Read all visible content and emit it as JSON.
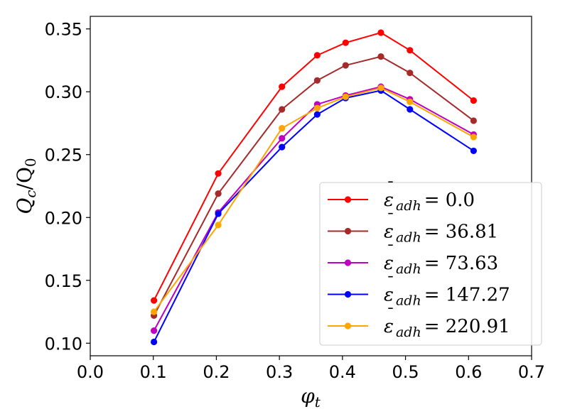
{
  "chart_data": {
    "type": "line",
    "title": "",
    "xlabel": "φ_t",
    "ylabel": "Q_c/Q_0",
    "xlim": [
      0.0,
      0.7
    ],
    "ylim": [
      0.09,
      0.36
    ],
    "xticks": [
      0.0,
      0.1,
      0.2,
      0.3,
      0.4,
      0.5,
      0.6,
      0.7
    ],
    "xtick_labels": [
      "0.0",
      "0.1",
      "0.2",
      "0.3",
      "0.4",
      "0.5",
      "0.6",
      "0.7"
    ],
    "yticks": [
      0.1,
      0.15,
      0.2,
      0.25,
      0.3,
      0.35
    ],
    "ytick_labels": [
      "0.10",
      "0.15",
      "0.20",
      "0.25",
      "0.30",
      "0.35"
    ],
    "grid": false,
    "legend_position": "lower-right",
    "x": [
      0.101,
      0.203,
      0.304,
      0.36,
      0.405,
      0.461,
      0.507,
      0.608
    ],
    "series": [
      {
        "name": "ε̄_adh = 0.0",
        "legend_value": "0.0",
        "color": "#ff0000",
        "values": [
          0.134,
          0.235,
          0.304,
          0.329,
          0.339,
          0.347,
          0.333,
          0.293
        ]
      },
      {
        "name": "ε̄_adh = 36.81",
        "legend_value": "36.81",
        "color": "#a52a2a",
        "values": [
          0.122,
          0.219,
          0.286,
          0.309,
          0.321,
          0.328,
          0.315,
          0.277
        ]
      },
      {
        "name": "ε̄_adh = 73.63",
        "legend_value": "73.63",
        "color": "#c000c0",
        "values": [
          0.11,
          0.204,
          0.263,
          0.29,
          0.297,
          0.304,
          0.294,
          0.266
        ]
      },
      {
        "name": "ε̄_adh = 147.27",
        "legend_value": "147.27",
        "color": "#0000ff",
        "values": [
          0.101,
          0.203,
          0.256,
          0.282,
          0.295,
          0.301,
          0.286,
          0.253
        ]
      },
      {
        "name": "ε̄_adh = 220.91",
        "legend_value": "220.91",
        "color": "#ffa500",
        "values": [
          0.125,
          0.194,
          0.271,
          0.287,
          0.296,
          0.303,
          0.292,
          0.264
        ]
      }
    ]
  }
}
